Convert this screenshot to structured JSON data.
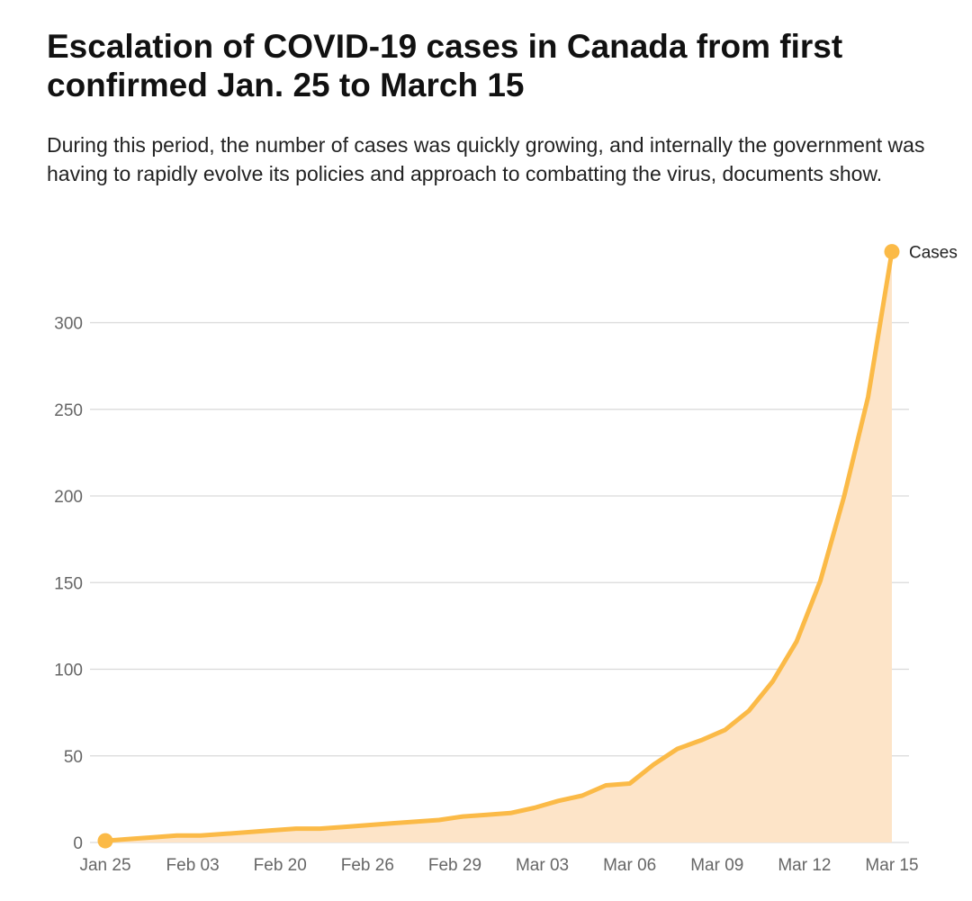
{
  "title": "Escalation of COVID-19 cases in Canada from first confirmed Jan. 25 to March 15",
  "subtitle": "During this period, the number of cases was quickly growing, and internally the government was having to rapidly evolve its policies and approach to combatting the virus, documents show.",
  "colors": {
    "line": "#fbba47",
    "area": "#fde4c8",
    "grid": "#d9d9d9",
    "tick_text": "#666666"
  },
  "chart_data": {
    "type": "area",
    "title": "",
    "xlabel": "",
    "ylabel": "",
    "ylim": [
      0,
      340
    ],
    "yticks": [
      0,
      50,
      100,
      150,
      200,
      250,
      300
    ],
    "x_tick_labels": [
      "Jan 25",
      "Feb 03",
      "Feb 20",
      "Feb 26",
      "Feb 29",
      "Mar 03",
      "Mar 06",
      "Mar 09",
      "Mar 12",
      "Mar 15"
    ],
    "grid": true,
    "legend": "end-of-line",
    "series": [
      {
        "name": "Cases",
        "values": [
          1,
          2,
          3,
          4,
          4,
          5,
          6,
          7,
          8,
          8,
          9,
          10,
          11,
          12,
          13,
          15,
          16,
          17,
          20,
          24,
          27,
          33,
          34,
          45,
          54,
          59,
          65,
          76,
          93,
          116,
          151,
          200,
          257,
          341
        ]
      }
    ]
  }
}
